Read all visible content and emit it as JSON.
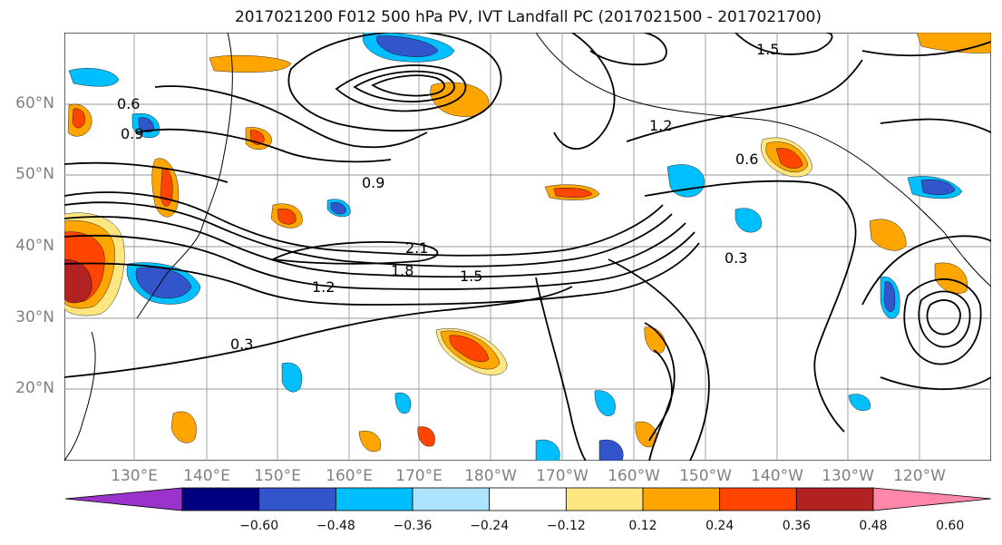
{
  "title": "2017021200 F012 500 hPa PV, IVT Landfall PC (2017021500 - 2017021700)",
  "latitude_labels": [
    "60°N",
    "50°N",
    "40°N",
    "30°N",
    "20°N"
  ],
  "longitude_labels": [
    "130°E",
    "140°E",
    "150°E",
    "160°E",
    "170°E",
    "180°W",
    "170°W",
    "160°W",
    "150°W",
    "140°W",
    "130°W",
    "120°W"
  ],
  "contour_labels": [
    "0.3",
    "0.6",
    "0.9",
    "1.2",
    "1.5",
    "1.8",
    "2.1",
    "0.3",
    "0.6",
    "0.9",
    "1.2",
    "1.5"
  ],
  "colorbar": {
    "ticks": [
      "−0.60",
      "−0.48",
      "−0.36",
      "−0.24",
      "−0.12",
      "0.12",
      "0.24",
      "0.36",
      "0.48",
      "0.60"
    ],
    "colors": [
      "#9933cc",
      "#000080",
      "#3355cc",
      "#00bfff",
      "#aee3ff",
      "#ffffff",
      "#ffe680",
      "#ffa500",
      "#ff4500",
      "#b22222",
      "#ff88aa"
    ]
  },
  "shading_colors": {
    "neg_strong": "#3355cc",
    "neg_mid": "#00bfff",
    "neg_weak": "#aee3ff",
    "pos_weak": "#ffe680",
    "pos_mid": "#ffa500",
    "pos_strong": "#ff4500",
    "pos_max": "#b22222"
  }
}
